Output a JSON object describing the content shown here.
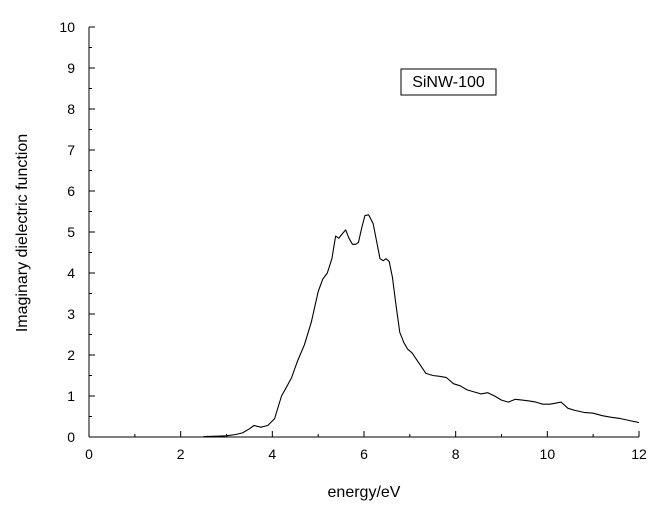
{
  "chart_data": {
    "type": "line",
    "title": "",
    "xlabel": "energy/eV",
    "ylabel": "Imaginary dielectric function",
    "xlim": [
      0,
      12
    ],
    "ylim": [
      0,
      10
    ],
    "x_ticks": [
      0,
      2,
      4,
      6,
      8,
      10,
      12
    ],
    "y_ticks": [
      0,
      1,
      2,
      3,
      4,
      5,
      6,
      7,
      8,
      9,
      10
    ],
    "grid": false,
    "legend_box_text": "SiNW-100",
    "series": [
      {
        "color": "#000000",
        "x": [
          2.5,
          2.8,
          3.0,
          3.2,
          3.35,
          3.5,
          3.6,
          3.75,
          3.9,
          4.05,
          4.2,
          4.3,
          4.42,
          4.55,
          4.7,
          4.85,
          5.0,
          5.1,
          5.2,
          5.3,
          5.38,
          5.45,
          5.52,
          5.6,
          5.67,
          5.75,
          5.82,
          5.88,
          5.95,
          6.02,
          6.1,
          6.2,
          6.28,
          6.35,
          6.42,
          6.48,
          6.55,
          6.62,
          6.7,
          6.78,
          6.87,
          6.95,
          7.05,
          7.2,
          7.35,
          7.5,
          7.65,
          7.8,
          7.95,
          8.1,
          8.25,
          8.4,
          8.55,
          8.7,
          8.85,
          9.0,
          9.15,
          9.3,
          9.45,
          9.6,
          9.75,
          9.9,
          10.05,
          10.15,
          10.3,
          10.45,
          10.6,
          10.8,
          11.0,
          11.2,
          11.4,
          11.6,
          11.8,
          12.0
        ],
        "y": [
          0.01,
          0.02,
          0.03,
          0.06,
          0.1,
          0.2,
          0.28,
          0.24,
          0.28,
          0.45,
          1.0,
          1.2,
          1.45,
          1.85,
          2.25,
          2.8,
          3.55,
          3.85,
          4.0,
          4.35,
          4.9,
          4.85,
          4.95,
          5.05,
          4.85,
          4.7,
          4.7,
          4.75,
          5.1,
          5.4,
          5.42,
          5.2,
          4.75,
          4.35,
          4.3,
          4.35,
          4.28,
          3.9,
          3.2,
          2.55,
          2.3,
          2.15,
          2.05,
          1.8,
          1.55,
          1.5,
          1.48,
          1.45,
          1.3,
          1.25,
          1.15,
          1.1,
          1.05,
          1.08,
          1.0,
          0.9,
          0.85,
          0.92,
          0.9,
          0.88,
          0.85,
          0.8,
          0.8,
          0.82,
          0.85,
          0.7,
          0.65,
          0.6,
          0.58,
          0.52,
          0.48,
          0.45,
          0.4,
          0.35
        ]
      }
    ]
  }
}
